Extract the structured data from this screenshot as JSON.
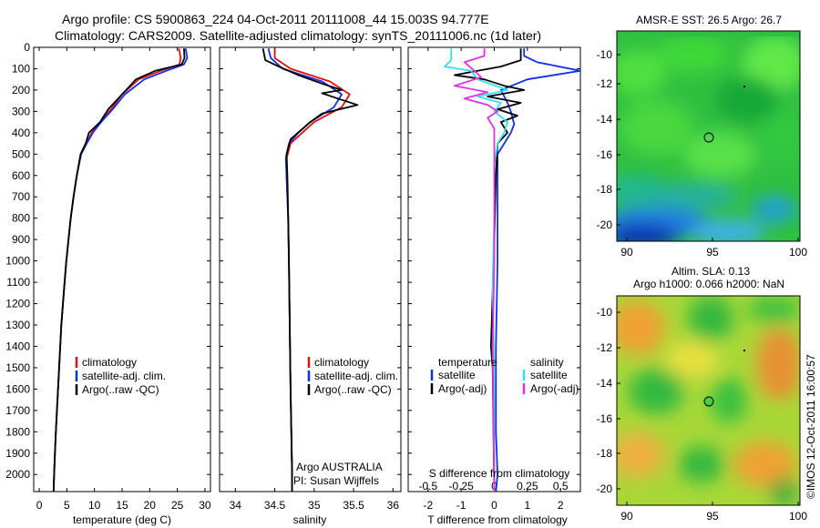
{
  "header": {
    "line1": "Argo profile: CS 5900863_224 04-Oct-2011 20111008_44 15.003S 94.777E",
    "line2": "Climatology: CARS2009. Satellite-adjusted climatology: synTS_20111006.nc (1d later)"
  },
  "credit": "©IMOS 12-Oct-2011 16:00:57",
  "colors": {
    "climatology": "#e01010",
    "satellite": "#1030e8",
    "argo": "#000000",
    "salinity_satellite": "#30e0f0",
    "salinity_argo": "#e030e0"
  },
  "chart_data": [
    {
      "type": "line",
      "panel": "temperature",
      "xlabel": "temperature (deg C)",
      "ylabel": "",
      "xlim": [
        -1,
        31
      ],
      "ylim": [
        0,
        2080
      ],
      "y_reversed": true,
      "xticks": [
        0,
        5,
        10,
        15,
        20,
        25,
        30
      ],
      "yticks": [
        0,
        100,
        200,
        300,
        400,
        500,
        600,
        700,
        800,
        900,
        1000,
        1100,
        1200,
        1300,
        1400,
        1500,
        1600,
        1700,
        1800,
        1900,
        2000
      ],
      "legend": [
        "climatology",
        "satellite-adj. clim.",
        "Argo(..raw -QC)"
      ],
      "series": [
        {
          "name": "climatology",
          "color": "#e01010",
          "points": [
            [
              25.3,
              5
            ],
            [
              25.6,
              50
            ],
            [
              25.4,
              80
            ],
            [
              22,
              110
            ],
            [
              18,
              150
            ],
            [
              15,
              220
            ],
            [
              13,
              290
            ],
            [
              11,
              350
            ],
            [
              9.5,
              400
            ],
            [
              8.5,
              450
            ],
            [
              7.5,
              500
            ],
            [
              6.8,
              600
            ],
            [
              6.2,
              700
            ],
            [
              5.7,
              800
            ],
            [
              5.3,
              900
            ],
            [
              4.9,
              1000
            ],
            [
              4.6,
              1100
            ],
            [
              4.3,
              1200
            ],
            [
              4.0,
              1300
            ],
            [
              3.8,
              1400
            ],
            [
              3.6,
              1500
            ],
            [
              3.4,
              1600
            ],
            [
              3.2,
              1700
            ],
            [
              3.0,
              1800
            ],
            [
              2.85,
              1900
            ],
            [
              2.7,
              2000
            ],
            [
              2.6,
              2080
            ]
          ]
        },
        {
          "name": "satellite-adj. clim.",
          "color": "#1030e8",
          "points": [
            [
              26.5,
              5
            ],
            [
              26.8,
              50
            ],
            [
              26.2,
              80
            ],
            [
              23,
              110
            ],
            [
              19,
              150
            ],
            [
              15.5,
              220
            ],
            [
              13.3,
              290
            ],
            [
              11.2,
              350
            ],
            [
              9.7,
              400
            ],
            [
              8.6,
              450
            ],
            [
              7.6,
              500
            ],
            [
              6.8,
              600
            ],
            [
              6.2,
              700
            ],
            [
              5.7,
              800
            ],
            [
              5.3,
              900
            ],
            [
              4.9,
              1000
            ],
            [
              4.6,
              1100
            ],
            [
              4.3,
              1200
            ],
            [
              4.0,
              1300
            ],
            [
              3.8,
              1400
            ],
            [
              3.6,
              1500
            ],
            [
              3.4,
              1600
            ],
            [
              3.2,
              1700
            ],
            [
              3.0,
              1800
            ],
            [
              2.85,
              1900
            ],
            [
              2.7,
              2000
            ],
            [
              2.6,
              2080
            ]
          ]
        },
        {
          "name": "Argo(..raw -QC)",
          "color": "#000000",
          "points": [
            [
              26.2,
              5
            ],
            [
              26.3,
              50
            ],
            [
              25.8,
              80
            ],
            [
              21,
              110
            ],
            [
              17.5,
              150
            ],
            [
              15,
              220
            ],
            [
              12.5,
              290
            ],
            [
              11,
              350
            ],
            [
              9,
              400
            ],
            [
              8.4,
              450
            ],
            [
              7.5,
              500
            ],
            [
              6.8,
              600
            ],
            [
              6.2,
              700
            ],
            [
              5.7,
              800
            ],
            [
              5.3,
              900
            ],
            [
              4.9,
              1000
            ],
            [
              4.6,
              1100
            ],
            [
              4.3,
              1200
            ],
            [
              4.0,
              1300
            ],
            [
              3.8,
              1400
            ],
            [
              3.6,
              1500
            ],
            [
              3.4,
              1600
            ],
            [
              3.2,
              1700
            ],
            [
              3.0,
              1800
            ],
            [
              2.85,
              1900
            ],
            [
              2.7,
              2000
            ],
            [
              2.6,
              2080
            ]
          ]
        }
      ]
    },
    {
      "type": "line",
      "panel": "salinity",
      "xlabel": "salinity",
      "xlim": [
        33.8,
        36.1
      ],
      "ylim": [
        0,
        2080
      ],
      "y_reversed": true,
      "xticks": [
        34,
        34.5,
        35,
        35.5,
        36
      ],
      "legend": [
        "climatology",
        "satellite-adj. clim.",
        "Argo(..raw -QC)"
      ],
      "annotation": [
        "Argo AUSTRALIA",
        "PI: Susan Wijffels"
      ],
      "series": [
        {
          "name": "climatology",
          "color": "#e01010",
          "points": [
            [
              34.5,
              5
            ],
            [
              34.5,
              50
            ],
            [
              34.7,
              100
            ],
            [
              35.2,
              160
            ],
            [
              35.45,
              220
            ],
            [
              35.35,
              280
            ],
            [
              35.0,
              350
            ],
            [
              34.85,
              400
            ],
            [
              34.7,
              450
            ],
            [
              34.65,
              520
            ],
            [
              34.65,
              600
            ],
            [
              34.67,
              800
            ],
            [
              34.68,
              1000
            ],
            [
              34.69,
              1300
            ],
            [
              34.7,
              1600
            ],
            [
              34.72,
              2000
            ],
            [
              34.72,
              2080
            ]
          ]
        },
        {
          "name": "satellite-adj. clim.",
          "color": "#1030e8",
          "points": [
            [
              34.42,
              5
            ],
            [
              34.45,
              50
            ],
            [
              34.6,
              100
            ],
            [
              35.1,
              160
            ],
            [
              35.35,
              220
            ],
            [
              35.25,
              280
            ],
            [
              34.95,
              350
            ],
            [
              34.8,
              400
            ],
            [
              34.68,
              450
            ],
            [
              34.64,
              520
            ],
            [
              34.65,
              600
            ],
            [
              34.67,
              800
            ],
            [
              34.68,
              1000
            ],
            [
              34.69,
              1300
            ],
            [
              34.7,
              1600
            ],
            [
              34.72,
              2000
            ],
            [
              34.72,
              2080
            ]
          ]
        },
        {
          "name": "Argo(..raw -QC)",
          "color": "#000000",
          "points": [
            [
              34.35,
              5
            ],
            [
              34.38,
              60
            ],
            [
              34.55,
              90
            ],
            [
              34.8,
              130
            ],
            [
              35.1,
              170
            ],
            [
              35.35,
              200
            ],
            [
              35.1,
              215
            ],
            [
              35.3,
              240
            ],
            [
              35.55,
              270
            ],
            [
              35.1,
              310
            ],
            [
              34.95,
              350
            ],
            [
              34.7,
              430
            ],
            [
              34.65,
              500
            ],
            [
              34.66,
              600
            ],
            [
              34.67,
              800
            ],
            [
              34.68,
              1000
            ],
            [
              34.69,
              1300
            ],
            [
              34.7,
              1600
            ],
            [
              34.72,
              2000
            ],
            [
              34.72,
              2080
            ]
          ]
        }
      ]
    },
    {
      "type": "line",
      "panel": "difference",
      "xlabel": "T difference from climatology",
      "xlabel_top": "S difference from climatology",
      "xlim": [
        -2.6,
        2.6
      ],
      "ylim": [
        0,
        2080
      ],
      "y_reversed": true,
      "xticks": [
        -2,
        -1,
        0,
        1,
        2
      ],
      "top_ticks": [
        "-0.5",
        "-0.25",
        "0",
        "0.25",
        "0.5"
      ],
      "legend_temperature": [
        "temperature",
        "satellite",
        "Argo(-adj)"
      ],
      "legend_salinity": [
        "salinity",
        "satellite",
        "Argo(-adj)"
      ],
      "series": [
        {
          "name": "temperature satellite",
          "color": "#1030e8",
          "points": [
            [
              0.9,
              5
            ],
            [
              0.9,
              40
            ],
            [
              1.3,
              70
            ],
            [
              2.6,
              110
            ],
            [
              1.0,
              150
            ],
            [
              0.2,
              200
            ],
            [
              0.4,
              260
            ],
            [
              0.5,
              300
            ],
            [
              0.6,
              360
            ],
            [
              0.5,
              400
            ],
            [
              0.3,
              450
            ],
            [
              0.1,
              500
            ],
            [
              0.1,
              700
            ],
            [
              0.1,
              1000
            ],
            [
              0.05,
              1400
            ],
            [
              0.05,
              1800
            ],
            [
              0.1,
              2000
            ],
            [
              0.05,
              2080
            ]
          ]
        },
        {
          "name": "temperature Argo(-adj)",
          "color": "#000000",
          "points": [
            [
              0.8,
              5
            ],
            [
              0.8,
              60
            ],
            [
              0.2,
              90
            ],
            [
              -0.5,
              110
            ],
            [
              -1.2,
              130
            ],
            [
              -0.3,
              150
            ],
            [
              0.3,
              180
            ],
            [
              0.9,
              200
            ],
            [
              -0.2,
              230
            ],
            [
              0.8,
              260
            ],
            [
              0.1,
              290
            ],
            [
              0.7,
              320
            ],
            [
              0.2,
              350
            ],
            [
              0.4,
              400
            ],
            [
              0.1,
              450
            ],
            [
              0.05,
              600
            ],
            [
              0.0,
              900
            ],
            [
              -0.1,
              1400
            ],
            [
              -0.05,
              1500
            ],
            [
              0.0,
              2080
            ]
          ]
        },
        {
          "name": "salinity satellite",
          "color": "#30e0f0",
          "points": [
            [
              -1.3,
              5
            ],
            [
              -1.3,
              60
            ],
            [
              -1.5,
              90
            ],
            [
              -0.7,
              110
            ],
            [
              -0.5,
              150
            ],
            [
              0.4,
              200
            ],
            [
              -0.5,
              230
            ],
            [
              0.2,
              260
            ],
            [
              0.0,
              300
            ],
            [
              0.4,
              350
            ],
            [
              0.3,
              400
            ],
            [
              0.1,
              450
            ],
            [
              0.0,
              550
            ],
            [
              0.0,
              800
            ],
            [
              -0.05,
              1100
            ],
            [
              0.0,
              1600
            ],
            [
              0.0,
              2080
            ]
          ]
        },
        {
          "name": "salinity Argo(-adj)",
          "color": "#e030e0",
          "points": [
            [
              -0.3,
              5
            ],
            [
              -0.3,
              40
            ],
            [
              -0.9,
              70
            ],
            [
              -0.6,
              110
            ],
            [
              -0.4,
              140
            ],
            [
              -1.2,
              180
            ],
            [
              -0.2,
              210
            ],
            [
              -0.9,
              240
            ],
            [
              -0.2,
              270
            ],
            [
              0.1,
              300
            ],
            [
              -0.2,
              330
            ],
            [
              0.0,
              380
            ],
            [
              0.0,
              600
            ],
            [
              0.0,
              1000
            ],
            [
              -0.05,
              1400
            ],
            [
              0.0,
              2080
            ]
          ]
        }
      ]
    }
  ],
  "map_sst": {
    "title": "AMSR-E SST: 26.5 Argo: 26.7",
    "xticks": [
      "90",
      "95",
      "100"
    ],
    "yticks": [
      "-10",
      "-12",
      "-14",
      "-16",
      "-18",
      "-20"
    ]
  },
  "map_sla": {
    "title_line1": "Altim. SLA: 0.13",
    "title_line2": "Argo h1000: 0.066 h2000: NaN",
    "xticks": [
      "90",
      "95",
      "100"
    ],
    "yticks": [
      "-10",
      "-12",
      "-14",
      "-16",
      "-18",
      "-20"
    ]
  },
  "legend_labels": {
    "climatology": "climatology",
    "satellite_adj": "satellite-adj. clim.",
    "argo_raw": "Argo(..raw -QC)",
    "temperature": "temperature",
    "salinity": "salinity",
    "satellite": "satellite",
    "argo_adj": "Argo(-adj)"
  }
}
